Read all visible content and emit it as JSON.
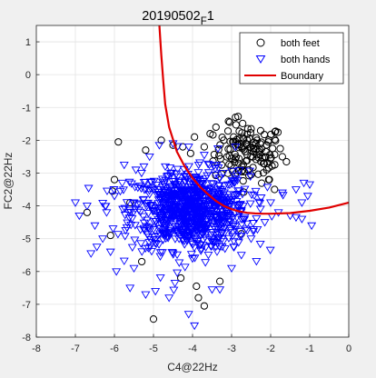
{
  "chart_data": {
    "type": "scatter",
    "title": "20190502",
    "title_subscript": "F",
    "title_suffix": "1",
    "xlabel": "C4@22Hz",
    "ylabel": "FC2@22Hz",
    "xlim": [
      -8,
      0
    ],
    "ylim": [
      -8,
      1.5
    ],
    "xticks": [
      -8,
      -7,
      -6,
      -5,
      -4,
      -3,
      -2,
      -1,
      0
    ],
    "xtick_labels": [
      "-8",
      "-7",
      "-6",
      "-5",
      "-4",
      "-3",
      "-2",
      "-1",
      "0"
    ],
    "yticks": [
      -8,
      -7,
      -6,
      -5,
      -4,
      -3,
      -2,
      -1,
      0,
      1
    ],
    "ytick_labels": [
      "-8",
      "-7",
      "-6",
      "-5",
      "-4",
      "-3",
      "-2",
      "-1",
      "0",
      "1"
    ],
    "grid": true,
    "legend_position": "top-right",
    "legend": [
      "both feet",
      "both hands",
      "Boundary"
    ],
    "series": [
      {
        "name": "both feet",
        "marker": "circle",
        "color": "#000000",
        "points": [
          [
            -5.9,
            -2.05
          ],
          [
            -5.0,
            -7.45
          ],
          [
            -3.7,
            -7.05
          ],
          [
            -3.4,
            -1.6
          ],
          [
            -3.05,
            -1.45
          ],
          [
            -2.9,
            -1.3
          ],
          [
            -2.7,
            -2.2
          ],
          [
            -2.35,
            -2.0
          ],
          [
            -2.1,
            -2.9
          ],
          [
            -1.95,
            -2.25
          ],
          [
            -1.9,
            -3.5
          ],
          [
            -2.05,
            -3.2
          ],
          [
            -3.3,
            -6.3
          ],
          [
            -3.85,
            -6.8
          ],
          [
            -2.6,
            -2.45
          ],
          [
            -2.25,
            -2.65
          ],
          [
            -2.5,
            -3.05
          ],
          [
            -2.95,
            -1.9
          ],
          [
            -3.2,
            -2.0
          ],
          [
            -3.7,
            -2.2
          ],
          [
            -4.05,
            -2.4
          ],
          [
            -4.5,
            -2.15
          ],
          [
            -4.8,
            -2.0
          ],
          [
            -5.2,
            -2.3
          ],
          [
            -5.6,
            -3.9
          ],
          [
            -6.05,
            -3.55
          ],
          [
            -6.7,
            -4.2
          ],
          [
            -6.0,
            -3.2
          ],
          [
            -3.0,
            -2.55
          ],
          [
            -2.8,
            -1.95
          ],
          [
            -3.55,
            -1.8
          ],
          [
            -3.95,
            -1.9
          ],
          [
            -4.25,
            -2.2
          ],
          [
            -2.3,
            -2.35
          ],
          [
            -2.7,
            -2.75
          ],
          [
            -5.3,
            -5.7
          ],
          [
            -4.3,
            -6.2
          ],
          [
            -3.9,
            -6.45
          ],
          [
            -2.75,
            -4.85
          ],
          [
            -6.1,
            -4.9
          ]
        ],
        "dense_cluster": {
          "center": [
            -2.55,
            -2.4
          ],
          "spread": [
            0.45,
            0.45
          ],
          "count": 120
        }
      },
      {
        "name": "both hands",
        "marker": "triangle-down",
        "color": "#0000ff",
        "points": [
          [
            -7.0,
            -3.9
          ],
          [
            -6.7,
            -4.0
          ],
          [
            -6.6,
            -5.45
          ],
          [
            -6.5,
            -4.6
          ],
          [
            -6.3,
            -5.0
          ],
          [
            -6.1,
            -5.4
          ],
          [
            -5.95,
            -6.0
          ],
          [
            -5.6,
            -6.5
          ],
          [
            -5.2,
            -6.7
          ],
          [
            -4.95,
            -6.6
          ],
          [
            -4.6,
            -6.8
          ],
          [
            -4.1,
            -7.3
          ],
          [
            -3.95,
            -7.65
          ],
          [
            -3.5,
            -6.55
          ],
          [
            -3.3,
            -6.55
          ],
          [
            -3.0,
            -5.9
          ],
          [
            -2.75,
            -5.5
          ],
          [
            -2.5,
            -5.0
          ],
          [
            -2.15,
            -4.5
          ],
          [
            -1.8,
            -4.2
          ],
          [
            -1.5,
            -4.3
          ],
          [
            -1.35,
            -4.35
          ],
          [
            -1.2,
            -4.4
          ],
          [
            -0.95,
            -4.6
          ],
          [
            -1.05,
            -3.7
          ],
          [
            -1.2,
            -3.9
          ],
          [
            -1.35,
            -3.5
          ],
          [
            -1.15,
            -3.3
          ],
          [
            -1.0,
            -3.35
          ],
          [
            -1.7,
            -3.6
          ],
          [
            -2.0,
            -3.9
          ],
          [
            -5.85,
            -3.55
          ],
          [
            -6.0,
            -3.7
          ],
          [
            -5.8,
            -3.3
          ],
          [
            -5.75,
            -2.75
          ],
          [
            -5.45,
            -2.9
          ],
          [
            -5.1,
            -2.5
          ],
          [
            -4.85,
            -2.15
          ],
          [
            -4.5,
            -2.1
          ],
          [
            -4.1,
            -2.2
          ],
          [
            -3.7,
            -2.45
          ],
          [
            -3.35,
            -2.25
          ],
          [
            -2.9,
            -2.2
          ],
          [
            -6.9,
            -4.3
          ],
          [
            -6.2,
            -4.2
          ],
          [
            -6.45,
            -5.25
          ],
          [
            -5.5,
            -5.9
          ],
          [
            -4.45,
            -6.35
          ],
          [
            -2.95,
            -5.25
          ],
          [
            -2.6,
            -4.75
          ]
        ],
        "dense_cluster": {
          "center": [
            -4.05,
            -4.15
          ],
          "spread": [
            0.75,
            0.6
          ],
          "count": 900
        }
      },
      {
        "name": "Boundary",
        "type": "line",
        "color": "#e00000",
        "x": [
          -4.85,
          -4.8,
          -4.75,
          -4.7,
          -4.6,
          -4.4,
          -4.2,
          -4.0,
          -3.8,
          -3.6,
          -3.4,
          -3.2,
          -3.0,
          -2.8,
          -2.6,
          -2.4,
          -2.2,
          -2.0,
          -1.5,
          -1.0,
          -0.5,
          0.0
        ],
        "y": [
          1.5,
          0.6,
          -0.2,
          -0.9,
          -1.6,
          -2.35,
          -2.8,
          -3.15,
          -3.43,
          -3.65,
          -3.85,
          -4.0,
          -4.1,
          -4.17,
          -4.21,
          -4.23,
          -4.24,
          -4.24,
          -4.22,
          -4.15,
          -4.05,
          -3.9
        ]
      }
    ]
  }
}
